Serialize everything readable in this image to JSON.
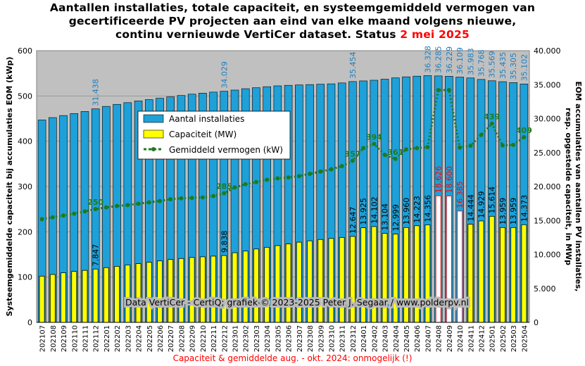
{
  "title": {
    "line1": "Aantallen installaties, totale capaciteit, en systeemgemiddeld vermogen van",
    "line2": "gecertificeerde PV projecten aan eind van elke maand volgens nieuwe,",
    "line3_prefix": "continu vernieuwde VertiCer dataset. Status ",
    "line3_date": "2 mei 2025"
  },
  "footnote": "Capaciteit & gemiddelde aug. - okt. 2024: onmogelijk (!)",
  "watermark": "Data VertiCer - CertiQ; grafiek © 2023-2025 Peter J. Segaar / www.polderpv.nl",
  "colors": {
    "plot_bg": "#c0c0c0",
    "installaties": "#1ea0d8",
    "capaciteit": "#ffff00",
    "gemiddeld": "#1e7a1e",
    "impossible": "#ff0000",
    "title_accent": "#ff0000"
  },
  "chart_data": {
    "type": "bar",
    "ylabel": "Systeemgemiddelde capaciteit bij accumulaties EOM (kWp)",
    "y2label": "EOM accumulaties van aantallen PV installaties, resp. opgestelde capaciteit, in MWp",
    "ylim": [
      0,
      600
    ],
    "y2lim": [
      0,
      40000
    ],
    "yticks": [
      "0",
      "100",
      "200",
      "300",
      "400",
      "500",
      "600"
    ],
    "y2ticks": [
      "0",
      "5.000",
      "10.000",
      "15.000",
      "20.000",
      "25.000",
      "30.000",
      "35.000",
      "40.000"
    ],
    "grid": true,
    "legend_position": "top-center",
    "categories": [
      "202107",
      "202108",
      "202109",
      "202110",
      "202111",
      "202112",
      "202201",
      "202202",
      "202203",
      "202204",
      "202205",
      "202206",
      "202207",
      "202208",
      "202209",
      "202210",
      "202211",
      "202212",
      "202301",
      "202302",
      "202303",
      "202304",
      "202305",
      "202306",
      "202307",
      "202308",
      "202309",
      "202310",
      "202311",
      "202312",
      "202401",
      "202402",
      "202403",
      "202404",
      "202405",
      "202406",
      "202407",
      "202408",
      "202409",
      "202410",
      "202411",
      "202412",
      "202501",
      "202502",
      "202503",
      "202504"
    ],
    "series": [
      {
        "name": "Aantal installaties",
        "axis": "right",
        "values": [
          29800,
          30150,
          30450,
          30750,
          31050,
          31438,
          31800,
          32100,
          32350,
          32600,
          32800,
          33000,
          33200,
          33400,
          33600,
          33750,
          33900,
          34029,
          34200,
          34400,
          34550,
          34700,
          34820,
          34900,
          34960,
          35010,
          35060,
          35120,
          35250,
          35454,
          35550,
          35650,
          35800,
          36000,
          36150,
          36250,
          36328,
          36285,
          36229,
          36109,
          35983,
          35768,
          35569,
          35435,
          35305,
          35102
        ]
      },
      {
        "name": "Capaciteit (MW)",
        "axis": "right",
        "values": [
          6800,
          7050,
          7300,
          7500,
          7650,
          7847,
          8050,
          8250,
          8450,
          8650,
          8850,
          9050,
          9250,
          9400,
          9550,
          9650,
          9750,
          9838,
          10250,
          10500,
          10800,
          11050,
          11300,
          11550,
          11800,
          12000,
          12200,
          12350,
          12500,
          12647,
          13925,
          14102,
          13104,
          12999,
          13960,
          14223,
          14356,
          18626,
          18600,
          16385,
          14444,
          14929,
          15614,
          13959,
          13959,
          14373
        ],
        "impossible_indices": [
          37,
          38,
          39
        ]
      },
      {
        "name": "Gemiddeld vermogen (kW)",
        "axis": "left",
        "values": [
          228,
          232,
          236,
          240,
          245,
          250,
          254,
          257,
          259,
          262,
          265,
          268,
          272,
          274,
          275,
          276,
          279,
          285,
          298,
          305,
          310,
          315,
          318,
          320,
          323,
          328,
          333,
          338,
          345,
          357,
          385,
          394,
          370,
          361,
          382,
          385,
          387,
          513,
          513,
          386,
          390,
          414,
          439,
          391,
          392,
          409
        ]
      }
    ],
    "data_labels": {
      "installaties": [
        {
          "index": 5,
          "text": "31.438"
        },
        {
          "index": 17,
          "text": "34.029"
        },
        {
          "index": 29,
          "text": "35.454"
        },
        {
          "index": 36,
          "text": "36.328"
        },
        {
          "index": 37,
          "text": "36.285"
        },
        {
          "index": 38,
          "text": "36.229"
        },
        {
          "index": 39,
          "text": "36.109"
        },
        {
          "index": 40,
          "text": "35.983"
        },
        {
          "index": 41,
          "text": "35.768"
        },
        {
          "index": 42,
          "text": "35.569"
        },
        {
          "index": 43,
          "text": "35.435"
        },
        {
          "index": 44,
          "text": "35.305"
        },
        {
          "index": 45,
          "text": "35.102"
        }
      ],
      "capaciteit": [
        {
          "index": 5,
          "text": "7.847"
        },
        {
          "index": 17,
          "text": "9.838"
        },
        {
          "index": 29,
          "text": "12.647"
        },
        {
          "index": 30,
          "text": "13.925"
        },
        {
          "index": 31,
          "text": "14.102"
        },
        {
          "index": 32,
          "text": "13.104"
        },
        {
          "index": 33,
          "text": "12.999"
        },
        {
          "index": 34,
          "text": "13.960"
        },
        {
          "index": 35,
          "text": "14.223"
        },
        {
          "index": 36,
          "text": "14.356"
        },
        {
          "index": 37,
          "text": "18.626"
        },
        {
          "index": 38,
          "text": "18.600"
        },
        {
          "index": 39,
          "text": "16.385"
        },
        {
          "index": 40,
          "text": "14.444"
        },
        {
          "index": 41,
          "text": "14.929"
        },
        {
          "index": 42,
          "text": "15.614"
        },
        {
          "index": 43,
          "text": "13.959"
        },
        {
          "index": 44,
          "text": "13.959"
        },
        {
          "index": 45,
          "text": "14.373"
        }
      ],
      "gemiddeld": [
        {
          "index": 5,
          "text": "250"
        },
        {
          "index": 17,
          "text": "285"
        },
        {
          "index": 29,
          "text": "357"
        },
        {
          "index": 31,
          "text": "394"
        },
        {
          "index": 33,
          "text": "361"
        },
        {
          "index": 42,
          "text": "439"
        },
        {
          "index": 45,
          "text": "409"
        }
      ]
    }
  }
}
